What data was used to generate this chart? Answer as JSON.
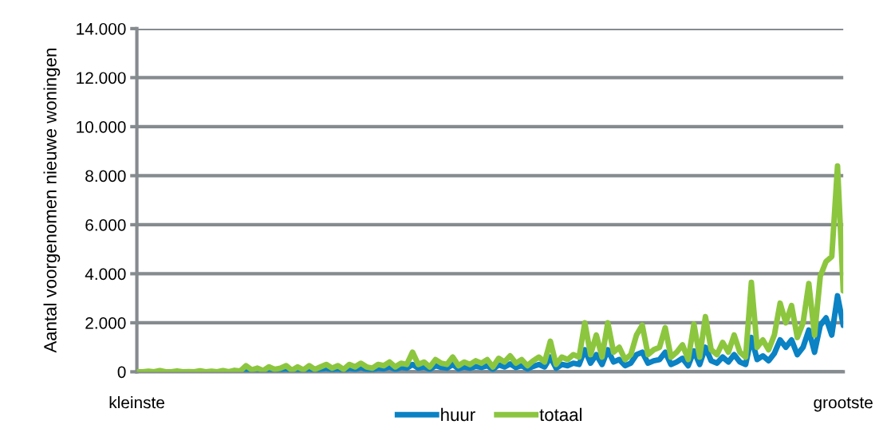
{
  "chart_data": {
    "type": "line",
    "ylabel": "Aantal voorgenomen nieuwe woningen",
    "categories": [
      "kleinste",
      null,
      null,
      null,
      null,
      null,
      null,
      null,
      null,
      null,
      null,
      null,
      null,
      null,
      null,
      null,
      null,
      null,
      null,
      null,
      null,
      null,
      null,
      null,
      null,
      null,
      null,
      null,
      null,
      null,
      null,
      null,
      null,
      null,
      null,
      null,
      null,
      null,
      null,
      null,
      null,
      null,
      null,
      null,
      null,
      null,
      null,
      null,
      null,
      null,
      null,
      null,
      null,
      null,
      null,
      null,
      null,
      null,
      null,
      null,
      null,
      null,
      null,
      null,
      null,
      null,
      null,
      null,
      null,
      null,
      null,
      null,
      null,
      null,
      null,
      null,
      null,
      null,
      null,
      null,
      null,
      null,
      null,
      null,
      null,
      null,
      null,
      null,
      null,
      null,
      null,
      null,
      null,
      null,
      null,
      null,
      null,
      null,
      null,
      null,
      null,
      null,
      null,
      null,
      null,
      null,
      null,
      null,
      null,
      null,
      null,
      null,
      null,
      null,
      null,
      null,
      null,
      null,
      null,
      null,
      null,
      null,
      null,
      "grootste"
    ],
    "series": [
      {
        "name": "huur",
        "color": "#0a82c4",
        "values": [
          null,
          null,
          null,
          null,
          null,
          null,
          null,
          null,
          null,
          null,
          null,
          null,
          null,
          null,
          null,
          null,
          null,
          null,
          null,
          50,
          30,
          80,
          20,
          100,
          50,
          80,
          120,
          30,
          100,
          40,
          120,
          50,
          100,
          150,
          80,
          120,
          50,
          150,
          100,
          180,
          100,
          80,
          150,
          120,
          200,
          100,
          180,
          150,
          300,
          150,
          200,
          100,
          250,
          180,
          150,
          300,
          120,
          200,
          150,
          220,
          180,
          250,
          100,
          280,
          200,
          320,
          180,
          250,
          120,
          220,
          300,
          200,
          600,
          150,
          300,
          250,
          350,
          300,
          900,
          350,
          700,
          300,
          900,
          400,
          500,
          250,
          350,
          700,
          800,
          350,
          450,
          500,
          800,
          300,
          400,
          550,
          250,
          850,
          300,
          1000,
          450,
          350,
          600,
          400,
          700,
          400,
          300,
          1400,
          500,
          650,
          450,
          750,
          1300,
          1000,
          1300,
          700,
          1000,
          1700,
          800,
          1900,
          2200,
          1500,
          3100,
          1900
        ]
      },
      {
        "name": "totaal",
        "color": "#8cc63f",
        "values": [
          0,
          0,
          20,
          0,
          50,
          0,
          0,
          30,
          0,
          10,
          0,
          40,
          0,
          20,
          0,
          50,
          0,
          60,
          30,
          250,
          80,
          150,
          50,
          200,
          100,
          150,
          250,
          60,
          200,
          80,
          250,
          100,
          200,
          300,
          150,
          250,
          100,
          300,
          200,
          350,
          200,
          150,
          300,
          250,
          400,
          200,
          350,
          300,
          800,
          300,
          400,
          200,
          500,
          350,
          300,
          600,
          250,
          400,
          300,
          450,
          350,
          500,
          200,
          550,
          400,
          650,
          350,
          500,
          250,
          450,
          600,
          400,
          1250,
          300,
          600,
          500,
          700,
          600,
          2000,
          700,
          1500,
          600,
          2000,
          800,
          1000,
          500,
          700,
          1500,
          1900,
          700,
          900,
          1000,
          1800,
          600,
          800,
          1100,
          500,
          1950,
          600,
          2250,
          900,
          700,
          1200,
          800,
          1500,
          800,
          600,
          3650,
          1000,
          1300,
          900,
          1500,
          2800,
          2000,
          2700,
          1400,
          2000,
          3600,
          1500,
          3900,
          4500,
          4700,
          8400,
          3300
        ]
      }
    ],
    "ylim": [
      0,
      14000
    ],
    "yticks": [
      {
        "value": 0,
        "label": "0"
      },
      {
        "value": 2000,
        "label": "2.000"
      },
      {
        "value": 4000,
        "label": "4.000"
      },
      {
        "value": 6000,
        "label": "6.000"
      },
      {
        "value": 8000,
        "label": "8.000"
      },
      {
        "value": 10000,
        "label": "10.000"
      },
      {
        "value": 12000,
        "label": "12.000"
      },
      {
        "value": 14000,
        "label": "14.000"
      }
    ],
    "grid": "y",
    "legend": "bottom",
    "marker": "none",
    "line_style": "solid"
  }
}
